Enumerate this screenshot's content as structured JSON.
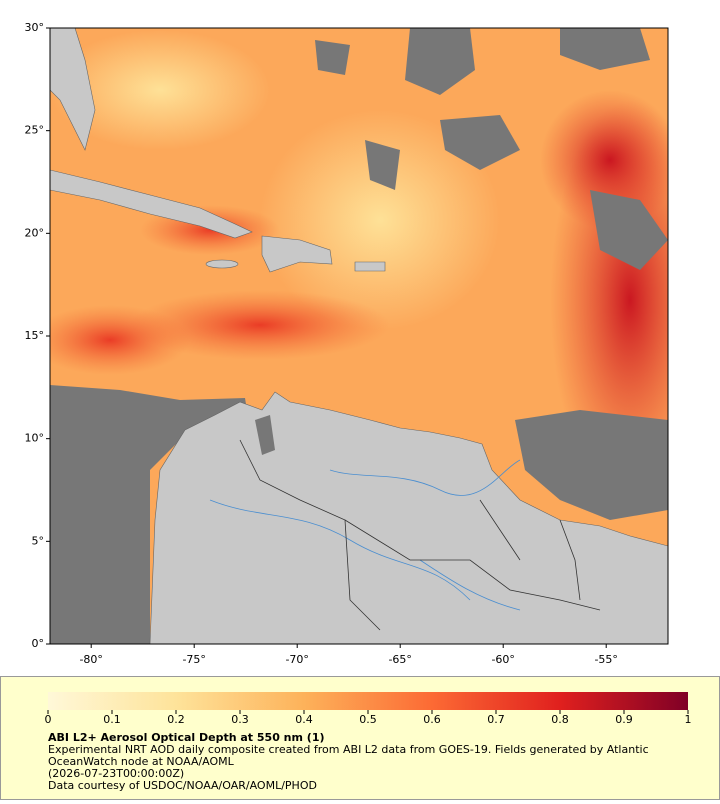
{
  "map": {
    "lon_range": [
      -82,
      -52
    ],
    "lat_range": [
      0,
      30
    ],
    "lat_ticks": [
      {
        "value": 30,
        "label": "30°"
      },
      {
        "value": 25,
        "label": "25°"
      },
      {
        "value": 20,
        "label": "20°"
      },
      {
        "value": 15,
        "label": "15°"
      },
      {
        "value": 10,
        "label": "10°"
      },
      {
        "value": 5,
        "label": "5°"
      },
      {
        "value": 0,
        "label": "0°"
      }
    ],
    "lon_ticks": [
      {
        "value": -80,
        "label": "-80°"
      },
      {
        "value": -75,
        "label": "-75°"
      },
      {
        "value": -70,
        "label": "-70°"
      },
      {
        "value": -65,
        "label": "-65°"
      },
      {
        "value": -60,
        "label": "-60°"
      },
      {
        "value": -55,
        "label": "-55°"
      }
    ]
  },
  "colorbar": {
    "ticks": [
      0,
      0.1,
      0.2,
      0.3,
      0.4,
      0.5,
      0.6,
      0.7,
      0.8,
      0.9,
      1
    ]
  },
  "legend": {
    "title": "ABI L2+ Aerosol Optical Depth at 550 nm (1)",
    "lines": [
      "Experimental NRT AOD daily composite created from ABI L2 data from GOES-19. Fields generated by Atlantic",
      "OceanWatch node at NOAA/AOML",
      "(2026-07-23T00:00:00Z)",
      "Data courtesy of USDOC/NOAA/OAR/AOML/PHOD"
    ]
  }
}
